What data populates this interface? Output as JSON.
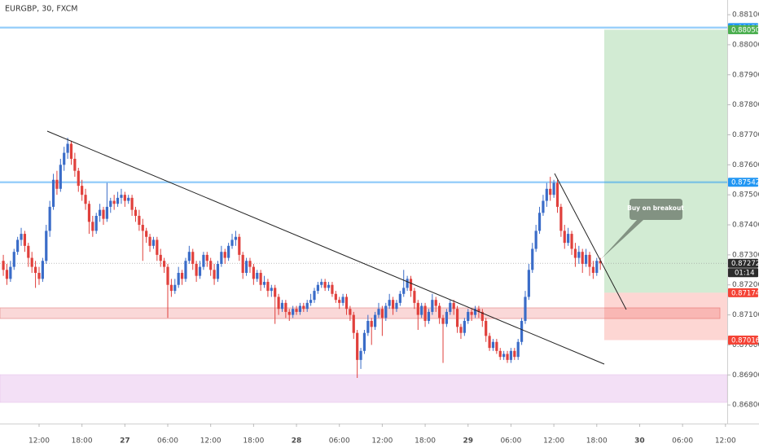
{
  "header": {
    "symbol": "EURGBP, 30, FXCM"
  },
  "chart_data": {
    "type": "candlestick",
    "up_color": "#3a6cc8",
    "down_color": "#e0403c",
    "ylim": [
      0.86738,
      0.88149
    ],
    "xlim": [
      -0.93,
      202.5
    ],
    "yticks": [
      {
        "value": 0.881,
        "label": "0.88100"
      },
      {
        "value": 0.88,
        "label": "0.88000"
      },
      {
        "value": 0.879,
        "label": "0.87900"
      },
      {
        "value": 0.878,
        "label": "0.87800"
      },
      {
        "value": 0.877,
        "label": "0.87700"
      },
      {
        "value": 0.876,
        "label": "0.87600"
      },
      {
        "value": 0.875,
        "label": "0.87500"
      },
      {
        "value": 0.874,
        "label": "0.87400"
      },
      {
        "value": 0.873,
        "label": "0.87300"
      },
      {
        "value": 0.872,
        "label": "0.87200"
      },
      {
        "value": 0.871,
        "label": "0.87100"
      },
      {
        "value": 0.87,
        "label": "0.87000"
      },
      {
        "value": 0.869,
        "label": "0.86900"
      },
      {
        "value": 0.868,
        "label": "0.86800"
      }
    ],
    "xticks": [
      {
        "value": 10,
        "label": "12:00"
      },
      {
        "value": 22,
        "label": "18:00"
      },
      {
        "value": 34,
        "label": "27"
      },
      {
        "value": 46,
        "label": "06:00"
      },
      {
        "value": 58,
        "label": "12:00"
      },
      {
        "value": 70,
        "label": "18:00"
      },
      {
        "value": 82,
        "label": "28"
      },
      {
        "value": 94,
        "label": "06:00"
      },
      {
        "value": 106,
        "label": "12:00"
      },
      {
        "value": 118,
        "label": "18:00"
      },
      {
        "value": 130,
        "label": "29"
      },
      {
        "value": 142,
        "label": "06:00"
      },
      {
        "value": 154,
        "label": "12:00"
      },
      {
        "value": 166,
        "label": "18:00"
      },
      {
        "value": 178,
        "label": "30"
      },
      {
        "value": 190,
        "label": "06:00"
      },
      {
        "value": 202,
        "label": "12:00"
      }
    ],
    "levels": [
      {
        "value": 0.88057,
        "color": "#2196f3"
      },
      {
        "value": 0.87542,
        "color": "#2196f3"
      }
    ],
    "position": {
      "target": {
        "value": 0.8805,
        "label": "0.88050"
      },
      "entry": 0.87174,
      "stop": 0.87016,
      "profit_color": "#4caf50",
      "loss_color": "#f44336"
    },
    "last_price": 0.87272,
    "countdown": "01:14",
    "annotation": "Buy on breakout",
    "candles": [
      [
        0.8728,
        0.873,
        0.8723,
        0.8725
      ],
      [
        0.8725,
        0.8727,
        0.872,
        0.8722
      ],
      [
        0.8722,
        0.8728,
        0.8721,
        0.8726
      ],
      [
        0.8726,
        0.8732,
        0.8725,
        0.8731
      ],
      [
        0.8731,
        0.8736,
        0.873,
        0.8735
      ],
      [
        0.8735,
        0.8739,
        0.8733,
        0.8737
      ],
      [
        0.8737,
        0.8738,
        0.8731,
        0.8733
      ],
      [
        0.8733,
        0.8734,
        0.8726,
        0.8729
      ],
      [
        0.8729,
        0.8731,
        0.8724,
        0.8726
      ],
      [
        0.8726,
        0.8728,
        0.8719,
        0.8724
      ],
      [
        0.8724,
        0.8726,
        0.872,
        0.8722
      ],
      [
        0.8722,
        0.8729,
        0.8721,
        0.8728
      ],
      [
        0.8728,
        0.874,
        0.8727,
        0.8738
      ],
      [
        0.8738,
        0.8748,
        0.8736,
        0.8746
      ],
      [
        0.8746,
        0.8757,
        0.8745,
        0.8755
      ],
      [
        0.8755,
        0.8758,
        0.875,
        0.8752
      ],
      [
        0.8752,
        0.8762,
        0.8751,
        0.876
      ],
      [
        0.876,
        0.8766,
        0.8758,
        0.8764
      ],
      [
        0.8764,
        0.8769,
        0.8762,
        0.8767
      ],
      [
        0.8767,
        0.8768,
        0.876,
        0.8762
      ],
      [
        0.8762,
        0.8764,
        0.8756,
        0.8758
      ],
      [
        0.8758,
        0.8759,
        0.8751,
        0.8753
      ],
      [
        0.8753,
        0.8755,
        0.8748,
        0.875
      ],
      [
        0.875,
        0.8752,
        0.8745,
        0.8747
      ],
      [
        0.8747,
        0.8748,
        0.8737,
        0.8741
      ],
      [
        0.8741,
        0.8743,
        0.8736,
        0.8738
      ],
      [
        0.8738,
        0.8744,
        0.8737,
        0.8743
      ],
      [
        0.8743,
        0.8747,
        0.8741,
        0.8745
      ],
      [
        0.8745,
        0.8746,
        0.874,
        0.8742
      ],
      [
        0.8742,
        0.8754,
        0.8741,
        0.8746
      ],
      [
        0.8746,
        0.8749,
        0.8744,
        0.8748
      ],
      [
        0.8748,
        0.875,
        0.8745,
        0.8747
      ],
      [
        0.8747,
        0.8751,
        0.8746,
        0.8749
      ],
      [
        0.8749,
        0.8752,
        0.8747,
        0.875
      ],
      [
        0.875,
        0.8751,
        0.8746,
        0.8748
      ],
      [
        0.8748,
        0.875,
        0.8747,
        0.8749
      ],
      [
        0.8749,
        0.875,
        0.8743,
        0.8745
      ],
      [
        0.8745,
        0.8746,
        0.8741,
        0.8743
      ],
      [
        0.8743,
        0.8745,
        0.8738,
        0.874
      ],
      [
        0.874,
        0.8742,
        0.8728,
        0.8738
      ],
      [
        0.8738,
        0.8739,
        0.8734,
        0.8736
      ],
      [
        0.8736,
        0.8737,
        0.8731,
        0.8733
      ],
      [
        0.8733,
        0.8736,
        0.8732,
        0.8735
      ],
      [
        0.8735,
        0.8736,
        0.8728,
        0.873
      ],
      [
        0.873,
        0.8732,
        0.8726,
        0.8728
      ],
      [
        0.8728,
        0.8729,
        0.8724,
        0.8726
      ],
      [
        0.8726,
        0.8727,
        0.8709,
        0.872
      ],
      [
        0.872,
        0.8722,
        0.8716,
        0.8718
      ],
      [
        0.8718,
        0.8722,
        0.8717,
        0.872
      ],
      [
        0.872,
        0.8726,
        0.8719,
        0.8724
      ],
      [
        0.8724,
        0.8725,
        0.872,
        0.8722
      ],
      [
        0.8722,
        0.8729,
        0.8721,
        0.8728
      ],
      [
        0.8728,
        0.8733,
        0.8727,
        0.8731
      ],
      [
        0.8731,
        0.8732,
        0.8725,
        0.8727
      ],
      [
        0.8727,
        0.8728,
        0.8721,
        0.8723
      ],
      [
        0.8723,
        0.8728,
        0.8722,
        0.8726
      ],
      [
        0.8726,
        0.8731,
        0.8725,
        0.873
      ],
      [
        0.873,
        0.8731,
        0.8726,
        0.8728
      ],
      [
        0.8728,
        0.8729,
        0.8723,
        0.8725
      ],
      [
        0.8725,
        0.8727,
        0.872,
        0.8722
      ],
      [
        0.8722,
        0.8728,
        0.8721,
        0.8727
      ],
      [
        0.8727,
        0.8733,
        0.8726,
        0.8731
      ],
      [
        0.8731,
        0.8732,
        0.8727,
        0.8729
      ],
      [
        0.8729,
        0.8734,
        0.8728,
        0.8733
      ],
      [
        0.8733,
        0.8737,
        0.8732,
        0.8735
      ],
      [
        0.8735,
        0.8738,
        0.8733,
        0.8736
      ],
      [
        0.8736,
        0.8737,
        0.8728,
        0.873
      ],
      [
        0.873,
        0.8731,
        0.8722,
        0.8724
      ],
      [
        0.8724,
        0.8729,
        0.8723,
        0.8728
      ],
      [
        0.8728,
        0.8729,
        0.8724,
        0.8726
      ],
      [
        0.8726,
        0.8727,
        0.872,
        0.8722
      ],
      [
        0.8722,
        0.8725,
        0.8721,
        0.8724
      ],
      [
        0.8724,
        0.8725,
        0.8718,
        0.872
      ],
      [
        0.872,
        0.8723,
        0.8719,
        0.8721
      ],
      [
        0.8721,
        0.8722,
        0.8716,
        0.8718
      ],
      [
        0.8718,
        0.872,
        0.8716,
        0.8719
      ],
      [
        0.8719,
        0.872,
        0.8707,
        0.8716
      ],
      [
        0.8716,
        0.8717,
        0.871,
        0.8712
      ],
      [
        0.8712,
        0.8715,
        0.8711,
        0.8714
      ],
      [
        0.8714,
        0.8715,
        0.8709,
        0.8711
      ],
      [
        0.8711,
        0.8712,
        0.8708,
        0.871
      ],
      [
        0.871,
        0.8713,
        0.8709,
        0.8712
      ],
      [
        0.8712,
        0.8713,
        0.871,
        0.8711
      ],
      [
        0.8711,
        0.8714,
        0.871,
        0.8713
      ],
      [
        0.8713,
        0.8714,
        0.8711,
        0.8712
      ],
      [
        0.8712,
        0.8715,
        0.8711,
        0.8714
      ],
      [
        0.8714,
        0.8717,
        0.8713,
        0.8715
      ],
      [
        0.8715,
        0.8719,
        0.8714,
        0.8718
      ],
      [
        0.8718,
        0.8721,
        0.8717,
        0.872
      ],
      [
        0.872,
        0.8722,
        0.8719,
        0.8721
      ],
      [
        0.8721,
        0.8722,
        0.8718,
        0.8719
      ],
      [
        0.8719,
        0.8721,
        0.8718,
        0.872
      ],
      [
        0.872,
        0.8721,
        0.8716,
        0.8717
      ],
      [
        0.8717,
        0.8718,
        0.8714,
        0.8715
      ],
      [
        0.8715,
        0.8716,
        0.8712,
        0.8714
      ],
      [
        0.8714,
        0.8717,
        0.8713,
        0.8716
      ],
      [
        0.8716,
        0.8717,
        0.871,
        0.8712
      ],
      [
        0.8712,
        0.8713,
        0.8708,
        0.871
      ],
      [
        0.871,
        0.8711,
        0.8702,
        0.8704
      ],
      [
        0.8704,
        0.8705,
        0.8689,
        0.8695
      ],
      [
        0.8695,
        0.8699,
        0.8692,
        0.8698
      ],
      [
        0.8698,
        0.8705,
        0.8697,
        0.8704
      ],
      [
        0.8704,
        0.871,
        0.8703,
        0.8708
      ],
      [
        0.8708,
        0.8709,
        0.87,
        0.8706
      ],
      [
        0.8706,
        0.8711,
        0.8705,
        0.871
      ],
      [
        0.871,
        0.8714,
        0.8709,
        0.8712
      ],
      [
        0.8712,
        0.8713,
        0.8703,
        0.8709
      ],
      [
        0.8709,
        0.8714,
        0.8708,
        0.8713
      ],
      [
        0.8713,
        0.8717,
        0.8712,
        0.8715
      ],
      [
        0.8715,
        0.8716,
        0.871,
        0.8712
      ],
      [
        0.8712,
        0.8715,
        0.8711,
        0.8714
      ],
      [
        0.8714,
        0.8718,
        0.8713,
        0.8717
      ],
      [
        0.8717,
        0.8725,
        0.8716,
        0.8719
      ],
      [
        0.8719,
        0.8723,
        0.8718,
        0.8722
      ],
      [
        0.8722,
        0.8723,
        0.8716,
        0.8718
      ],
      [
        0.8718,
        0.8719,
        0.8712,
        0.8714
      ],
      [
        0.8714,
        0.8715,
        0.8705,
        0.871
      ],
      [
        0.871,
        0.8714,
        0.8709,
        0.8713
      ],
      [
        0.8713,
        0.8714,
        0.8706,
        0.8708
      ],
      [
        0.8708,
        0.8712,
        0.8707,
        0.8711
      ],
      [
        0.8711,
        0.8717,
        0.871,
        0.8715
      ],
      [
        0.8715,
        0.8716,
        0.8711,
        0.8713
      ],
      [
        0.8713,
        0.8714,
        0.8707,
        0.8709
      ],
      [
        0.8709,
        0.871,
        0.8694,
        0.8707
      ],
      [
        0.8707,
        0.8712,
        0.8706,
        0.8711
      ],
      [
        0.8711,
        0.8715,
        0.871,
        0.8714
      ],
      [
        0.8714,
        0.8715,
        0.871,
        0.8712
      ],
      [
        0.8712,
        0.8713,
        0.8704,
        0.8706
      ],
      [
        0.8706,
        0.8707,
        0.8702,
        0.8704
      ],
      [
        0.8704,
        0.8709,
        0.8703,
        0.8708
      ],
      [
        0.8708,
        0.8712,
        0.8707,
        0.8711
      ],
      [
        0.8711,
        0.8712,
        0.8708,
        0.871
      ],
      [
        0.871,
        0.8713,
        0.8709,
        0.8712
      ],
      [
        0.8712,
        0.8713,
        0.8709,
        0.8711
      ],
      [
        0.8711,
        0.8712,
        0.8706,
        0.8708
      ],
      [
        0.8708,
        0.8709,
        0.8701,
        0.8703
      ],
      [
        0.8703,
        0.8704,
        0.8698,
        0.8699
      ],
      [
        0.8699,
        0.8702,
        0.8698,
        0.8701
      ],
      [
        0.8701,
        0.8702,
        0.8697,
        0.8698
      ],
      [
        0.8698,
        0.8699,
        0.8695,
        0.8696
      ],
      [
        0.8696,
        0.8698,
        0.8695,
        0.8697
      ],
      [
        0.8697,
        0.8698,
        0.8694,
        0.8695
      ],
      [
        0.8695,
        0.8699,
        0.8694,
        0.8698
      ],
      [
        0.8698,
        0.8699,
        0.8695,
        0.8696
      ],
      [
        0.8696,
        0.8702,
        0.8695,
        0.8701
      ],
      [
        0.8701,
        0.8709,
        0.87,
        0.8708
      ],
      [
        0.8708,
        0.8718,
        0.8707,
        0.8716
      ],
      [
        0.8716,
        0.8727,
        0.8715,
        0.8725
      ],
      [
        0.8725,
        0.8734,
        0.8724,
        0.8732
      ],
      [
        0.8732,
        0.874,
        0.8731,
        0.8738
      ],
      [
        0.8738,
        0.8746,
        0.8737,
        0.8744
      ],
      [
        0.8744,
        0.875,
        0.8743,
        0.8748
      ],
      [
        0.8748,
        0.8754,
        0.8746,
        0.8752
      ],
      [
        0.8752,
        0.8756,
        0.8748,
        0.875
      ],
      [
        0.875,
        0.8755,
        0.8749,
        0.8754
      ],
      [
        0.8754,
        0.8755,
        0.8744,
        0.8746
      ],
      [
        0.8746,
        0.8747,
        0.8736,
        0.8738
      ],
      [
        0.8738,
        0.874,
        0.8732,
        0.8734
      ],
      [
        0.8734,
        0.8739,
        0.8733,
        0.8737
      ],
      [
        0.8737,
        0.8738,
        0.873,
        0.8732
      ],
      [
        0.8732,
        0.8734,
        0.8726,
        0.8729
      ],
      [
        0.8729,
        0.8733,
        0.8727,
        0.8731
      ],
      [
        0.8731,
        0.8732,
        0.8724,
        0.8727
      ],
      [
        0.8727,
        0.8732,
        0.8726,
        0.873
      ],
      [
        0.873,
        0.8731,
        0.8723,
        0.8726
      ],
      [
        0.8726,
        0.8728,
        0.8722,
        0.8724
      ],
      [
        0.8724,
        0.8729,
        0.8723,
        0.8728
      ],
      [
        0.8728,
        0.8729,
        0.8725,
        0.87272
      ]
    ]
  }
}
